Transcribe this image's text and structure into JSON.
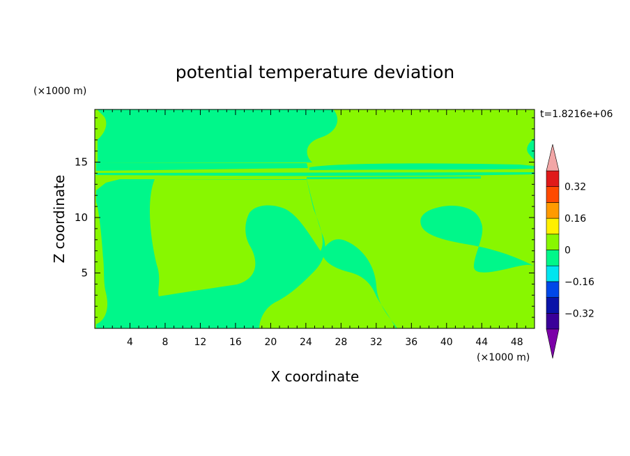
{
  "chart_data": {
    "type": "heatmap",
    "title": "potential temperature deviation",
    "xlabel": "X coordinate",
    "ylabel": "Z coordinate",
    "x_unit": "(×1000 m)",
    "y_unit": "(×1000 m)",
    "time_label": "t=1.8216e+06",
    "xlim": [
      0,
      50
    ],
    "ylim": [
      0,
      19.75
    ],
    "x_ticks": [
      "4",
      "8",
      "12",
      "16",
      "20",
      "24",
      "28",
      "32",
      "36",
      "40",
      "44",
      "48"
    ],
    "y_ticks": [
      "5",
      "10",
      "15"
    ],
    "colorbar": {
      "levels": [
        -0.4,
        -0.32,
        -0.24,
        -0.16,
        -0.08,
        0,
        0.08,
        0.16,
        0.24,
        0.32,
        0.4
      ],
      "tick_labels": [
        "0.32",
        "0.16",
        "0",
        "−0.16",
        "−0.32"
      ],
      "tick_values": [
        0.32,
        0.16,
        0,
        -0.16,
        -0.32
      ],
      "colors_bottom_to_top": [
        "#3a0099",
        "#0a13a8",
        "#0048e8",
        "#00e5f0",
        "#00f78a",
        "#88f700",
        "#fff000",
        "#ff9a00",
        "#ff4a00",
        "#e01a1a"
      ],
      "under_color": "#7c00a8",
      "over_color": "#f2a6a6"
    },
    "fields": [
      {
        "range": "0 to 0.08",
        "color": "#88f700",
        "role": "background"
      },
      {
        "range": "-0.08 to 0",
        "color": "#00f78a",
        "role": "regions"
      }
    ]
  }
}
